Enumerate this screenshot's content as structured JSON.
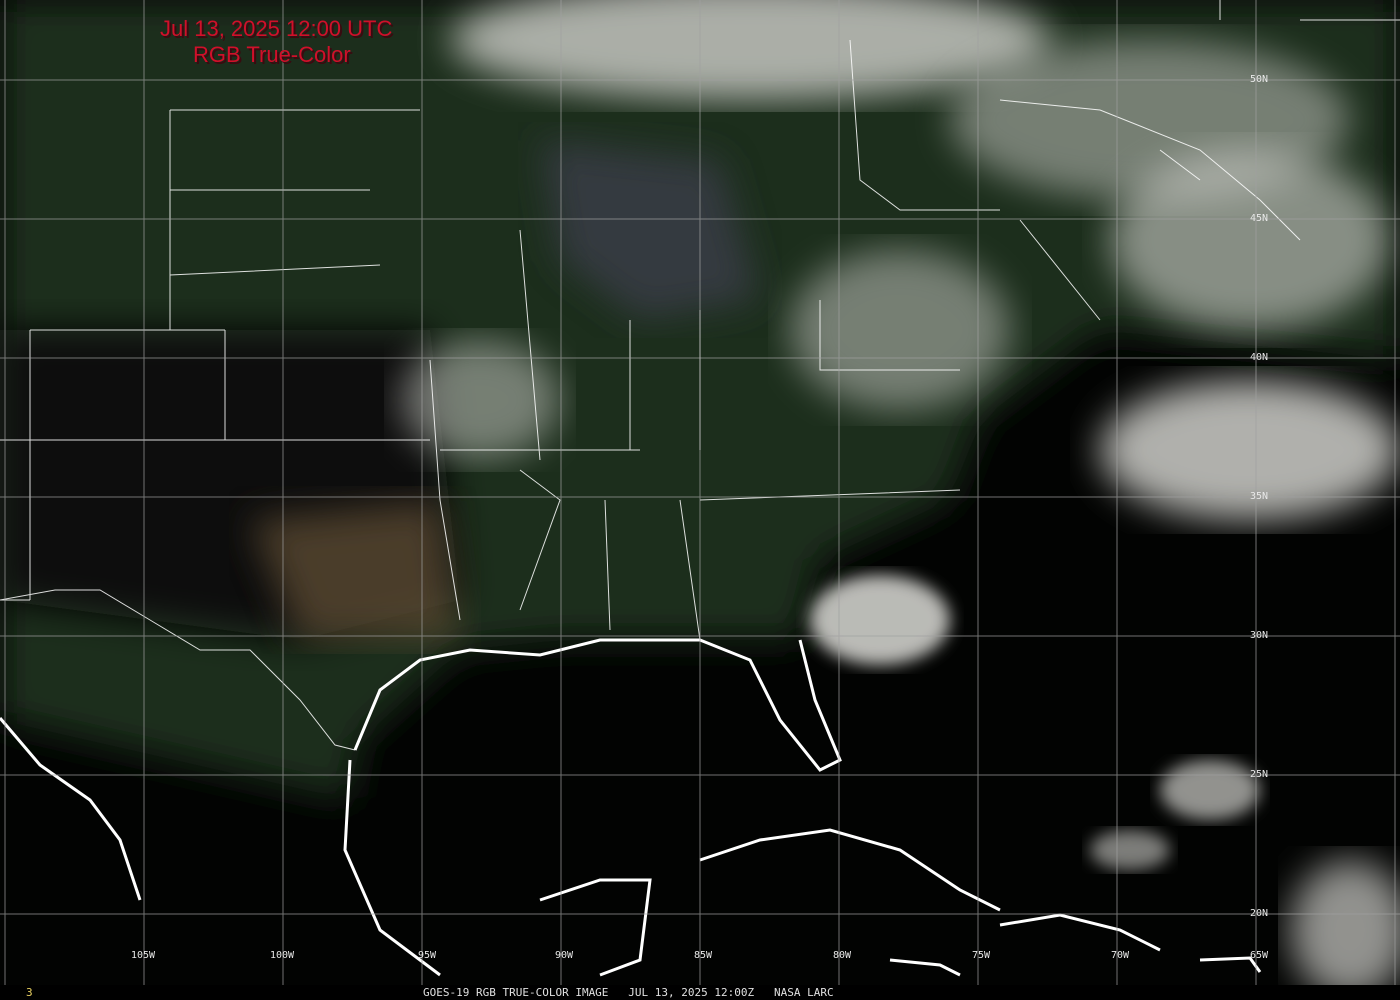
{
  "header": {
    "timestamp": "Jul 13, 2025 12:00 UTC",
    "product": "RGB True-Color"
  },
  "grid": {
    "latitudes": [
      "50N",
      "45N",
      "40N",
      "35N",
      "30N",
      "25N",
      "20N"
    ],
    "longitudes": [
      "105W",
      "100W",
      "95W",
      "90W",
      "85W",
      "80W",
      "75W",
      "70W",
      "65W"
    ]
  },
  "footer": {
    "frame_number": "3",
    "caption": "GOES-19 RGB TRUE-COLOR IMAGE   JUL 13, 2025 12:00Z   NASA LARC"
  },
  "colors": {
    "title": "#d0102a",
    "ocean": "#020302",
    "land": "#1c3320",
    "cloud": "#d8d8d4",
    "borders": "#ffffff"
  }
}
